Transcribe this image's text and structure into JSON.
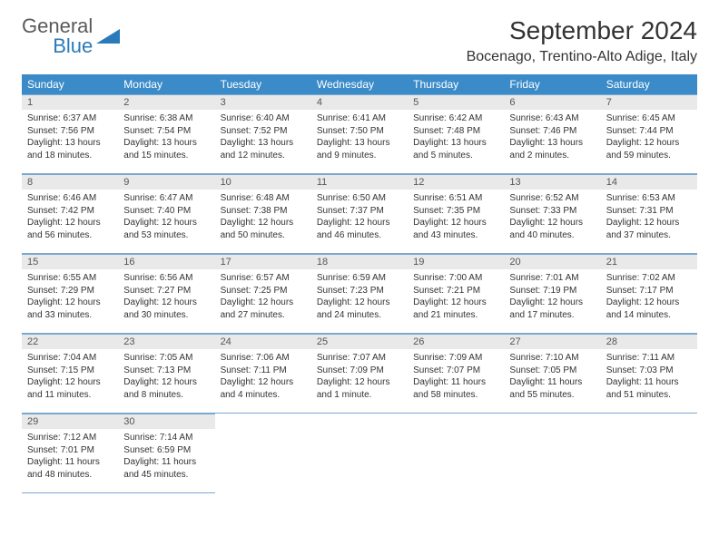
{
  "logo": {
    "line1": "General",
    "line2": "Blue"
  },
  "title": "September 2024",
  "location": "Bocenago, Trentino-Alto Adige, Italy",
  "header_bg": "#3b8bc9",
  "header_text_color": "#ffffff",
  "daynum_bg": "#e9e9e9",
  "border_color": "#7aa9d0",
  "body_bg": "#ffffff",
  "text_color": "#333333",
  "logo_gray": "#5a5a5a",
  "logo_blue": "#2a7ab9",
  "day_names": [
    "Sunday",
    "Monday",
    "Tuesday",
    "Wednesday",
    "Thursday",
    "Friday",
    "Saturday"
  ],
  "weeks": [
    [
      {
        "day": "1",
        "sunrise": "Sunrise: 6:37 AM",
        "sunset": "Sunset: 7:56 PM",
        "daylight1": "Daylight: 13 hours",
        "daylight2": "and 18 minutes."
      },
      {
        "day": "2",
        "sunrise": "Sunrise: 6:38 AM",
        "sunset": "Sunset: 7:54 PM",
        "daylight1": "Daylight: 13 hours",
        "daylight2": "and 15 minutes."
      },
      {
        "day": "3",
        "sunrise": "Sunrise: 6:40 AM",
        "sunset": "Sunset: 7:52 PM",
        "daylight1": "Daylight: 13 hours",
        "daylight2": "and 12 minutes."
      },
      {
        "day": "4",
        "sunrise": "Sunrise: 6:41 AM",
        "sunset": "Sunset: 7:50 PM",
        "daylight1": "Daylight: 13 hours",
        "daylight2": "and 9 minutes."
      },
      {
        "day": "5",
        "sunrise": "Sunrise: 6:42 AM",
        "sunset": "Sunset: 7:48 PM",
        "daylight1": "Daylight: 13 hours",
        "daylight2": "and 5 minutes."
      },
      {
        "day": "6",
        "sunrise": "Sunrise: 6:43 AM",
        "sunset": "Sunset: 7:46 PM",
        "daylight1": "Daylight: 13 hours",
        "daylight2": "and 2 minutes."
      },
      {
        "day": "7",
        "sunrise": "Sunrise: 6:45 AM",
        "sunset": "Sunset: 7:44 PM",
        "daylight1": "Daylight: 12 hours",
        "daylight2": "and 59 minutes."
      }
    ],
    [
      {
        "day": "8",
        "sunrise": "Sunrise: 6:46 AM",
        "sunset": "Sunset: 7:42 PM",
        "daylight1": "Daylight: 12 hours",
        "daylight2": "and 56 minutes."
      },
      {
        "day": "9",
        "sunrise": "Sunrise: 6:47 AM",
        "sunset": "Sunset: 7:40 PM",
        "daylight1": "Daylight: 12 hours",
        "daylight2": "and 53 minutes."
      },
      {
        "day": "10",
        "sunrise": "Sunrise: 6:48 AM",
        "sunset": "Sunset: 7:38 PM",
        "daylight1": "Daylight: 12 hours",
        "daylight2": "and 50 minutes."
      },
      {
        "day": "11",
        "sunrise": "Sunrise: 6:50 AM",
        "sunset": "Sunset: 7:37 PM",
        "daylight1": "Daylight: 12 hours",
        "daylight2": "and 46 minutes."
      },
      {
        "day": "12",
        "sunrise": "Sunrise: 6:51 AM",
        "sunset": "Sunset: 7:35 PM",
        "daylight1": "Daylight: 12 hours",
        "daylight2": "and 43 minutes."
      },
      {
        "day": "13",
        "sunrise": "Sunrise: 6:52 AM",
        "sunset": "Sunset: 7:33 PM",
        "daylight1": "Daylight: 12 hours",
        "daylight2": "and 40 minutes."
      },
      {
        "day": "14",
        "sunrise": "Sunrise: 6:53 AM",
        "sunset": "Sunset: 7:31 PM",
        "daylight1": "Daylight: 12 hours",
        "daylight2": "and 37 minutes."
      }
    ],
    [
      {
        "day": "15",
        "sunrise": "Sunrise: 6:55 AM",
        "sunset": "Sunset: 7:29 PM",
        "daylight1": "Daylight: 12 hours",
        "daylight2": "and 33 minutes."
      },
      {
        "day": "16",
        "sunrise": "Sunrise: 6:56 AM",
        "sunset": "Sunset: 7:27 PM",
        "daylight1": "Daylight: 12 hours",
        "daylight2": "and 30 minutes."
      },
      {
        "day": "17",
        "sunrise": "Sunrise: 6:57 AM",
        "sunset": "Sunset: 7:25 PM",
        "daylight1": "Daylight: 12 hours",
        "daylight2": "and 27 minutes."
      },
      {
        "day": "18",
        "sunrise": "Sunrise: 6:59 AM",
        "sunset": "Sunset: 7:23 PM",
        "daylight1": "Daylight: 12 hours",
        "daylight2": "and 24 minutes."
      },
      {
        "day": "19",
        "sunrise": "Sunrise: 7:00 AM",
        "sunset": "Sunset: 7:21 PM",
        "daylight1": "Daylight: 12 hours",
        "daylight2": "and 21 minutes."
      },
      {
        "day": "20",
        "sunrise": "Sunrise: 7:01 AM",
        "sunset": "Sunset: 7:19 PM",
        "daylight1": "Daylight: 12 hours",
        "daylight2": "and 17 minutes."
      },
      {
        "day": "21",
        "sunrise": "Sunrise: 7:02 AM",
        "sunset": "Sunset: 7:17 PM",
        "daylight1": "Daylight: 12 hours",
        "daylight2": "and 14 minutes."
      }
    ],
    [
      {
        "day": "22",
        "sunrise": "Sunrise: 7:04 AM",
        "sunset": "Sunset: 7:15 PM",
        "daylight1": "Daylight: 12 hours",
        "daylight2": "and 11 minutes."
      },
      {
        "day": "23",
        "sunrise": "Sunrise: 7:05 AM",
        "sunset": "Sunset: 7:13 PM",
        "daylight1": "Daylight: 12 hours",
        "daylight2": "and 8 minutes."
      },
      {
        "day": "24",
        "sunrise": "Sunrise: 7:06 AM",
        "sunset": "Sunset: 7:11 PM",
        "daylight1": "Daylight: 12 hours",
        "daylight2": "and 4 minutes."
      },
      {
        "day": "25",
        "sunrise": "Sunrise: 7:07 AM",
        "sunset": "Sunset: 7:09 PM",
        "daylight1": "Daylight: 12 hours",
        "daylight2": "and 1 minute."
      },
      {
        "day": "26",
        "sunrise": "Sunrise: 7:09 AM",
        "sunset": "Sunset: 7:07 PM",
        "daylight1": "Daylight: 11 hours",
        "daylight2": "and 58 minutes."
      },
      {
        "day": "27",
        "sunrise": "Sunrise: 7:10 AM",
        "sunset": "Sunset: 7:05 PM",
        "daylight1": "Daylight: 11 hours",
        "daylight2": "and 55 minutes."
      },
      {
        "day": "28",
        "sunrise": "Sunrise: 7:11 AM",
        "sunset": "Sunset: 7:03 PM",
        "daylight1": "Daylight: 11 hours",
        "daylight2": "and 51 minutes."
      }
    ],
    [
      {
        "day": "29",
        "sunrise": "Sunrise: 7:12 AM",
        "sunset": "Sunset: 7:01 PM",
        "daylight1": "Daylight: 11 hours",
        "daylight2": "and 48 minutes."
      },
      {
        "day": "30",
        "sunrise": "Sunrise: 7:14 AM",
        "sunset": "Sunset: 6:59 PM",
        "daylight1": "Daylight: 11 hours",
        "daylight2": "and 45 minutes."
      },
      null,
      null,
      null,
      null,
      null
    ]
  ]
}
